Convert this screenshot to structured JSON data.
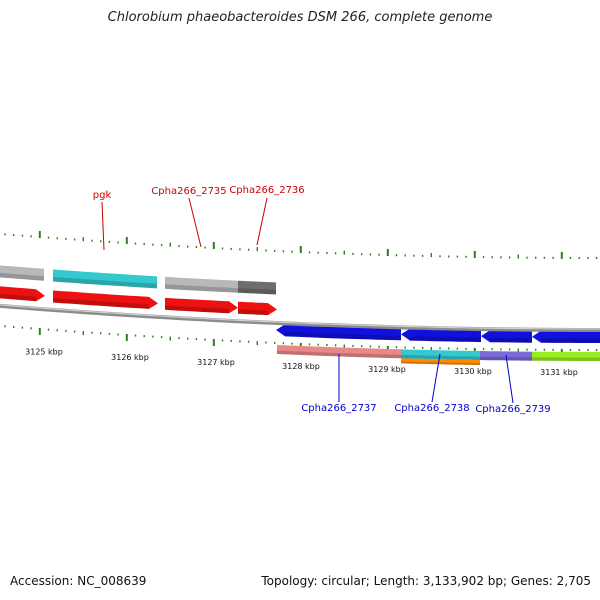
{
  "title": "Chlorobium phaeobacteroides DSM 266, complete genome",
  "footer": {
    "accession": "Accession: NC_008639",
    "summary": "Topology: circular; Length: 3,133,902 bp; Genes: 2,705"
  },
  "colors": {
    "tick": "#2e7d1a",
    "forward_label": "#cc0000",
    "reverse_label": "#0000cc",
    "backbone": "#8c8c8c"
  },
  "scale_labels": [
    {
      "kbp": 3125,
      "text": "3125 kbp"
    },
    {
      "kbp": 3126,
      "text": "3126 kbp"
    },
    {
      "kbp": 3127,
      "text": "3127 kbp"
    },
    {
      "kbp": 3128,
      "text": "3128 kbp"
    },
    {
      "kbp": 3129,
      "text": "3129 kbp"
    },
    {
      "kbp": 3130,
      "text": "3130 kbp"
    },
    {
      "kbp": 3131,
      "text": "3131 kbp"
    }
  ],
  "genes": {
    "forward_outer": [
      {
        "color": "#b8b8b8"
      },
      {
        "color": "#33c9cf"
      },
      {
        "color": "#b8b8b8"
      },
      {
        "color": "#6e6e6e"
      }
    ],
    "forward_inner": [
      {
        "color": "#ee1111"
      },
      {
        "color": "#ee1111"
      },
      {
        "color": "#ee1111"
      },
      {
        "color": "#ee1111"
      }
    ],
    "reverse_outer": [
      {
        "color": "#1111dd"
      },
      {
        "color": "#1111dd"
      },
      {
        "color": "#1111dd"
      },
      {
        "color": "#1111dd"
      }
    ],
    "reverse_inner": [
      {
        "color": "#e88888"
      },
      {
        "color": "#33c9cf"
      },
      {
        "color": "#7b6bd6"
      },
      {
        "color": "#99ee22"
      }
    ],
    "reverse_inner_under": [
      {
        "color": "#ff8800"
      }
    ]
  },
  "labels": {
    "forward": [
      "pgk",
      "Cpha266_2735",
      "Cpha266_2736"
    ],
    "reverse": [
      "Cpha266_2737",
      "Cpha266_2738",
      "Cpha266_2739"
    ]
  }
}
